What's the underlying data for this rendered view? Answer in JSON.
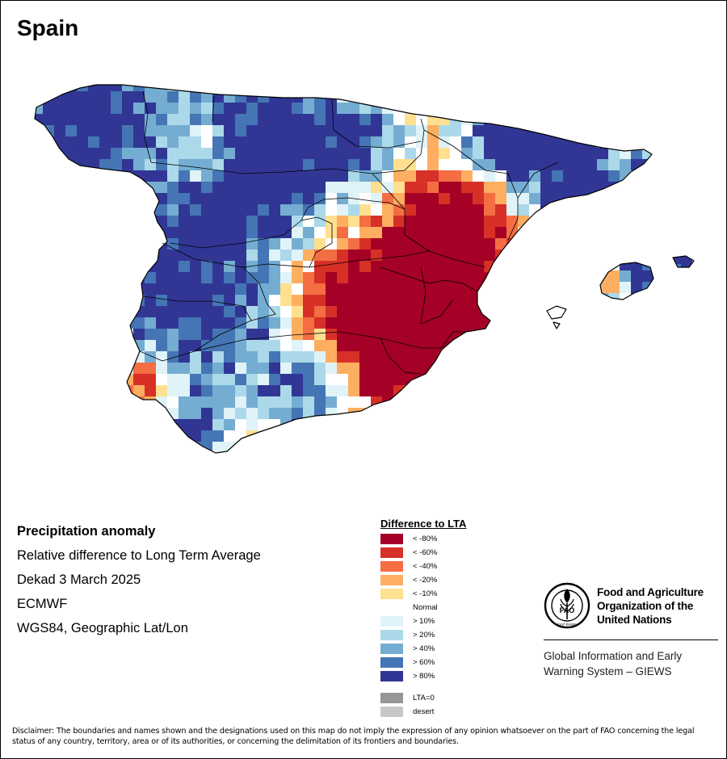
{
  "map": {
    "title": "Spain",
    "colors": {
      "sea": "#ffffff",
      "border": "#000000"
    }
  },
  "info": {
    "heading": "Precipitation anomaly",
    "line1": "Relative difference to Long Term Average",
    "line2": "Dekad 3 March 2025",
    "line3": "ECMWF",
    "line4": "WGS84, Geographic Lat/Lon"
  },
  "legend": {
    "title": "Difference to LTA",
    "items": [
      {
        "label": "< -80%",
        "color": "#a50026"
      },
      {
        "label": "< -60%",
        "color": "#d73027"
      },
      {
        "label": "< -40%",
        "color": "#f46d43"
      },
      {
        "label": "< -20%",
        "color": "#fdae61"
      },
      {
        "label": "< -10%",
        "color": "#fee090"
      },
      {
        "label": "Normal",
        "color": "#ffffff"
      },
      {
        "label": "> 10%",
        "color": "#e0f3f8"
      },
      {
        "label": "> 20%",
        "color": "#abd9e9"
      },
      {
        "label": "> 40%",
        "color": "#74add1"
      },
      {
        "label": "> 60%",
        "color": "#4575b4"
      },
      {
        "label": "> 80%",
        "color": "#313695"
      }
    ],
    "extra": [
      {
        "label": "LTA=0",
        "color": "#969696"
      },
      {
        "label": "desert",
        "color": "#c8c8c8"
      }
    ]
  },
  "fao": {
    "name_line1": "Food and Agriculture",
    "name_line2": "Organization of the",
    "name_line3": "United Nations",
    "giews_line1": "Global Information and Early",
    "giews_line2": "Warning System – GIEWS",
    "logo_text": "FAO",
    "logo_ring_text": "FIAT PANIS"
  },
  "disclaimer": "Disclaimer: The boundaries and names shown and the designations used on this map do not imply the expression of any opinion whatsoever on the part of FAO concerning the legal status of any country, territory, area or of its authorities, or concerning the delimitation of its frontiers and boundaries."
}
